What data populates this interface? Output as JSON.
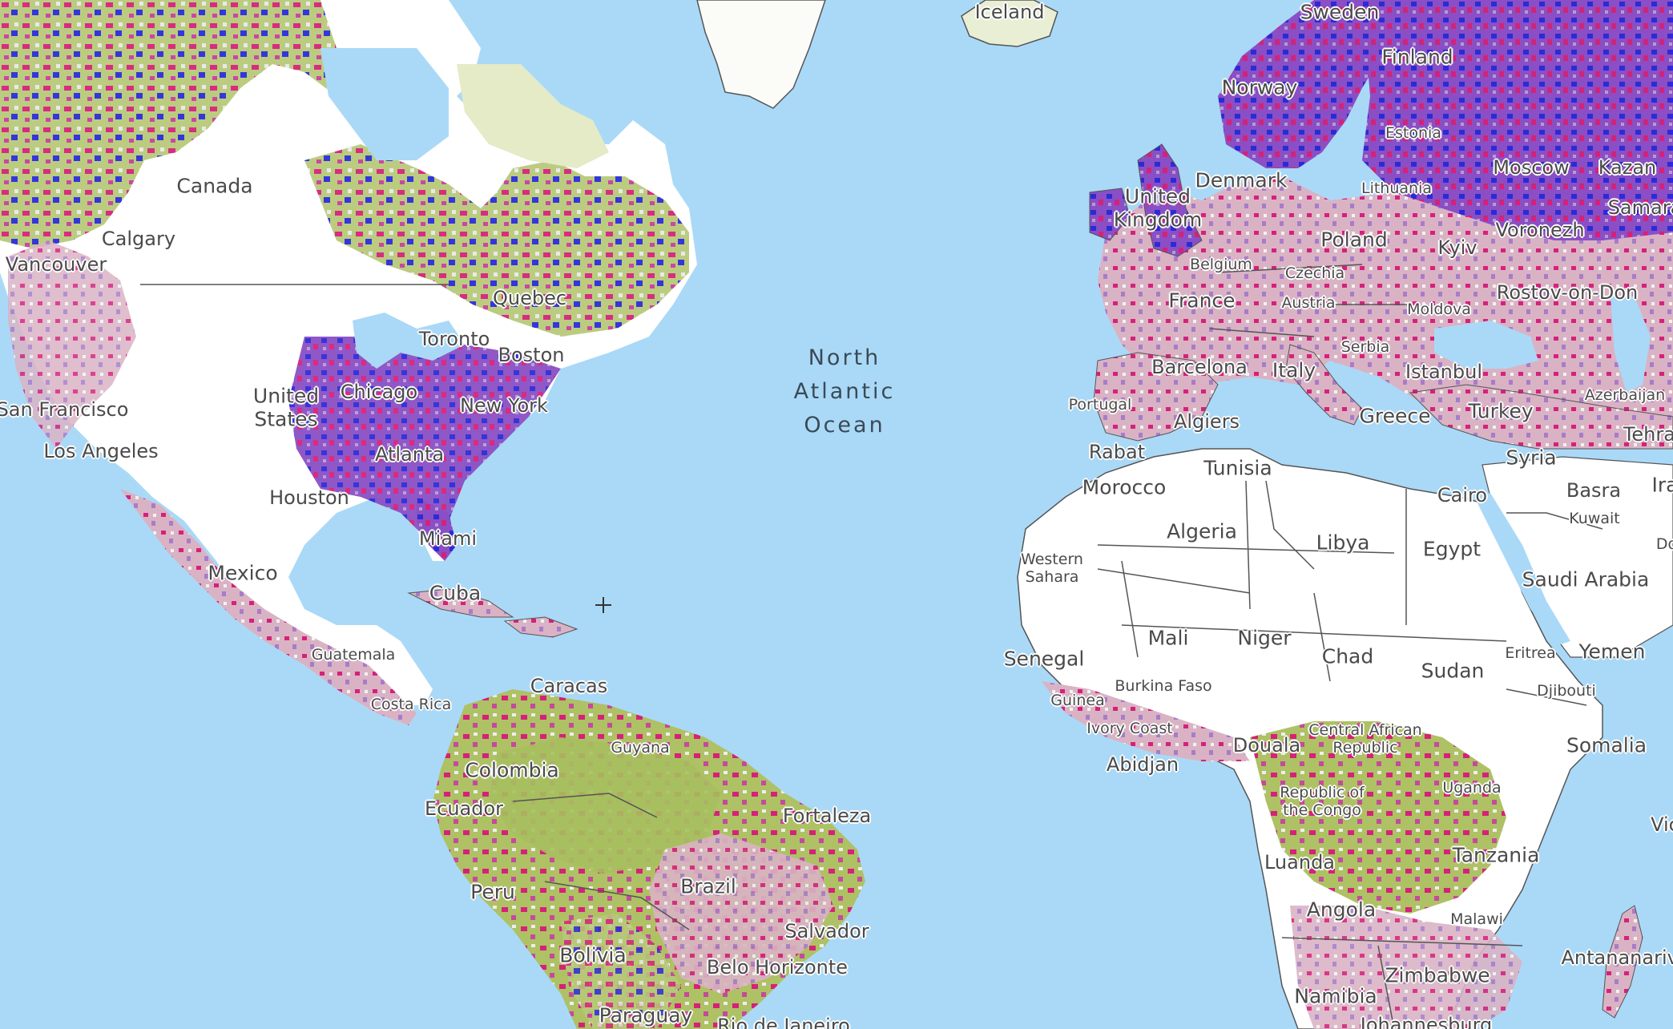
{
  "map": {
    "colors": {
      "ocean": "#aad9f7",
      "land_bare": "#ffffff",
      "land_forest": "#b7c97a",
      "land_forest_dark": "#a7bf5e",
      "loss_magenta": "#d6217a",
      "gain_blue": "#2a2bd8",
      "mixed_purple": "#8a4fc4",
      "ice": "#fbfbf8",
      "borders": "#555555"
    },
    "icons": {
      "crosshair": "crosshair-icon"
    },
    "oceans": {
      "north_atlantic": "North\nAtlantic\nOcean"
    },
    "labels": {
      "iceland": "Iceland",
      "sweden": "Sweden",
      "finland": "Finland",
      "norway": "Norway",
      "estonia": "Estonia",
      "denmark": "Denmark",
      "lithuania": "Lithuania",
      "moscow": "Moscow",
      "kazan": "Kazan",
      "samara": "Samara",
      "united_kingdom": "United\nKingdom",
      "poland": "Poland",
      "voronezh": "Voronezh",
      "belgium": "Belgium",
      "czechia": "Czechia",
      "kyiv": "Kyiv",
      "rostov": "Rostov-on-Don",
      "france": "France",
      "austria": "Austria",
      "moldova": "Moldova",
      "serbia": "Serbia",
      "barcelona": "Barcelona",
      "italy": "Italy",
      "istanbul": "Istanbul",
      "azerbaijan": "Azerbaijan",
      "portugal": "Portugal",
      "algiers": "Algiers",
      "greece": "Greece",
      "turkey": "Turkey",
      "tehran": "Tehran",
      "rabat": "Rabat",
      "tunisia": "Tunisia",
      "syria": "Syria",
      "morocco": "Morocco",
      "cairo": "Cairo",
      "basra": "Basra",
      "ira": "Ira",
      "kuwait": "Kuwait",
      "do": "Do",
      "algeria": "Algeria",
      "libya": "Libya",
      "egypt": "Egypt",
      "western_sahara": "Western\nSahara",
      "saudi_arabia": "Saudi Arabia",
      "mali": "Mali",
      "niger": "Niger",
      "senegal": "Senegal",
      "chad": "Chad",
      "sudan": "Sudan",
      "eritrea": "Eritrea",
      "yemen": "Yemen",
      "burkina_faso": "Burkina Faso",
      "djibouti": "Djibouti",
      "guinea": "Guinea",
      "ivory_coast": "Ivory Coast",
      "central_african_republic": "Central African\nRepublic",
      "abidjan": "Abidjan",
      "douala": "Douala",
      "somalia": "Somalia",
      "uganda": "Uganda",
      "republic_of_congo": "Republic of\nthe Congo",
      "vic": "Vic",
      "luanda": "Luanda",
      "tanzania": "Tanzania",
      "angola": "Angola",
      "malawi": "Malawi",
      "antananarivo": "Antananarivo",
      "zimbabwe": "Zimbabwe",
      "namibia": "Namibia",
      "johannesburg": "Johannesburg",
      "canada": "Canada",
      "calgary": "Calgary",
      "vancouver": "Vancouver",
      "quebec": "Quebec",
      "toronto": "Toronto",
      "boston": "Boston",
      "united_states": "United\nStates",
      "chicago": "Chicago",
      "san_francisco": "San Francisco",
      "new_york": "New York",
      "los_angeles": "Los Angeles",
      "atlanta": "Atlanta",
      "houston": "Houston",
      "miami": "Miami",
      "mexico": "Mexico",
      "cuba": "Cuba",
      "guatemala": "Guatemala",
      "caracas": "Caracas",
      "costa_rica": "Costa Rica",
      "guyana": "Guyana",
      "colombia": "Colombia",
      "ecuador": "Ecuador",
      "fortaleza": "Fortaleza",
      "peru": "Peru",
      "brazil": "Brazil",
      "salvador": "Salvador",
      "bolivia": "Bolivia",
      "belo_horizonte": "Belo Horizonte",
      "paraguay": "Paraguay",
      "rio_de_janeiro": "Rio de Janeiro"
    }
  }
}
